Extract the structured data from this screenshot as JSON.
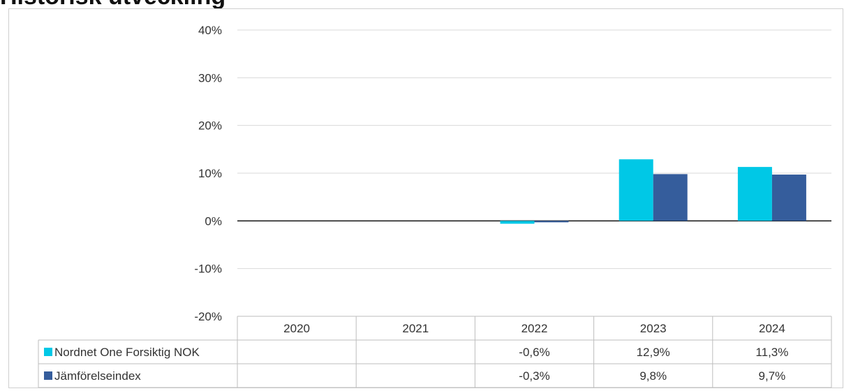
{
  "title": "Historisk utveckling",
  "chart_data": {
    "type": "bar",
    "title": "Historisk utveckling",
    "categories": [
      "2020",
      "2021",
      "2022",
      "2023",
      "2024"
    ],
    "series": [
      {
        "name": "Nordnet One Forsiktig NOK",
        "color": "#00c8e6",
        "values": [
          null,
          null,
          -0.6,
          12.9,
          11.3
        ],
        "labels": [
          "",
          "",
          "-0,6%",
          "12,9%",
          "11,3%"
        ]
      },
      {
        "name": "Jämförelseindex",
        "color": "#355d9c",
        "values": [
          null,
          null,
          -0.3,
          9.8,
          9.7
        ],
        "labels": [
          "",
          "",
          "-0,3%",
          "9,8%",
          "9,7%"
        ]
      }
    ],
    "yticks": [
      "40%",
      "30%",
      "20%",
      "10%",
      "0%",
      "-10%",
      "-20%"
    ],
    "ytick_values": [
      40,
      30,
      20,
      10,
      0,
      -10,
      -20
    ],
    "ylim": [
      -20,
      40
    ],
    "grid": true,
    "legend": "table"
  }
}
